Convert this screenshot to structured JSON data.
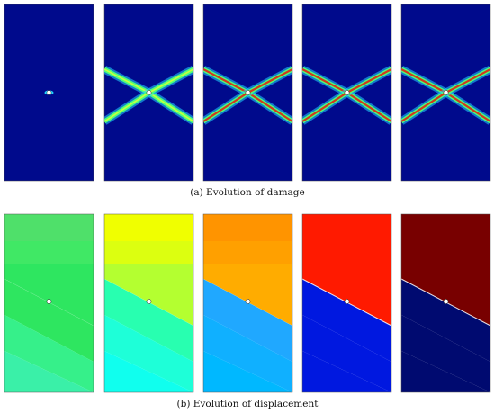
{
  "figure": {
    "caption_a": "(a)  Evolution of damage",
    "caption_b": "(b)  Evolution of displacement"
  },
  "colors": {
    "damage_bg": "#000a8c",
    "band_outer": "#1fd3ff",
    "band_mid": "#4cff7a",
    "band_core": "#d23a1a",
    "hole": "#ffffff"
  },
  "damage_panels": [
    {
      "stage": 1,
      "band_strength": 0
    },
    {
      "stage": 2,
      "band_strength": 1
    },
    {
      "stage": 3,
      "band_strength": 2
    },
    {
      "stage": 4,
      "band_strength": 2
    },
    {
      "stage": 5,
      "band_strength": 2
    }
  ],
  "displacement_panels": [
    {
      "stage": 1,
      "top_colors": [
        "#4fe06a",
        "#40e865",
        "#2ee660"
      ],
      "bottom_colors": [
        "#2ee660",
        "#36f08a",
        "#3af0a8"
      ]
    },
    {
      "stage": 2,
      "top_colors": [
        "#f0ff00",
        "#dcff10",
        "#b4ff30"
      ],
      "bottom_colors": [
        "#28ffb0",
        "#1effd8",
        "#10ffee"
      ]
    },
    {
      "stage": 3,
      "top_colors": [
        "#ff9400",
        "#ffa000",
        "#ffac00"
      ],
      "bottom_colors": [
        "#20a8ff",
        "#10b0ff",
        "#00b8ff"
      ]
    },
    {
      "stage": 4,
      "top_colors": [
        "#ff1a00",
        "#ff1a00",
        "#ff1a00"
      ],
      "bottom_colors": [
        "#0018e0",
        "#0018e0",
        "#0018e0"
      ]
    },
    {
      "stage": 5,
      "top_colors": [
        "#780000",
        "#780000",
        "#780000"
      ],
      "bottom_colors": [
        "#000a70",
        "#000a70",
        "#000a70"
      ]
    }
  ]
}
